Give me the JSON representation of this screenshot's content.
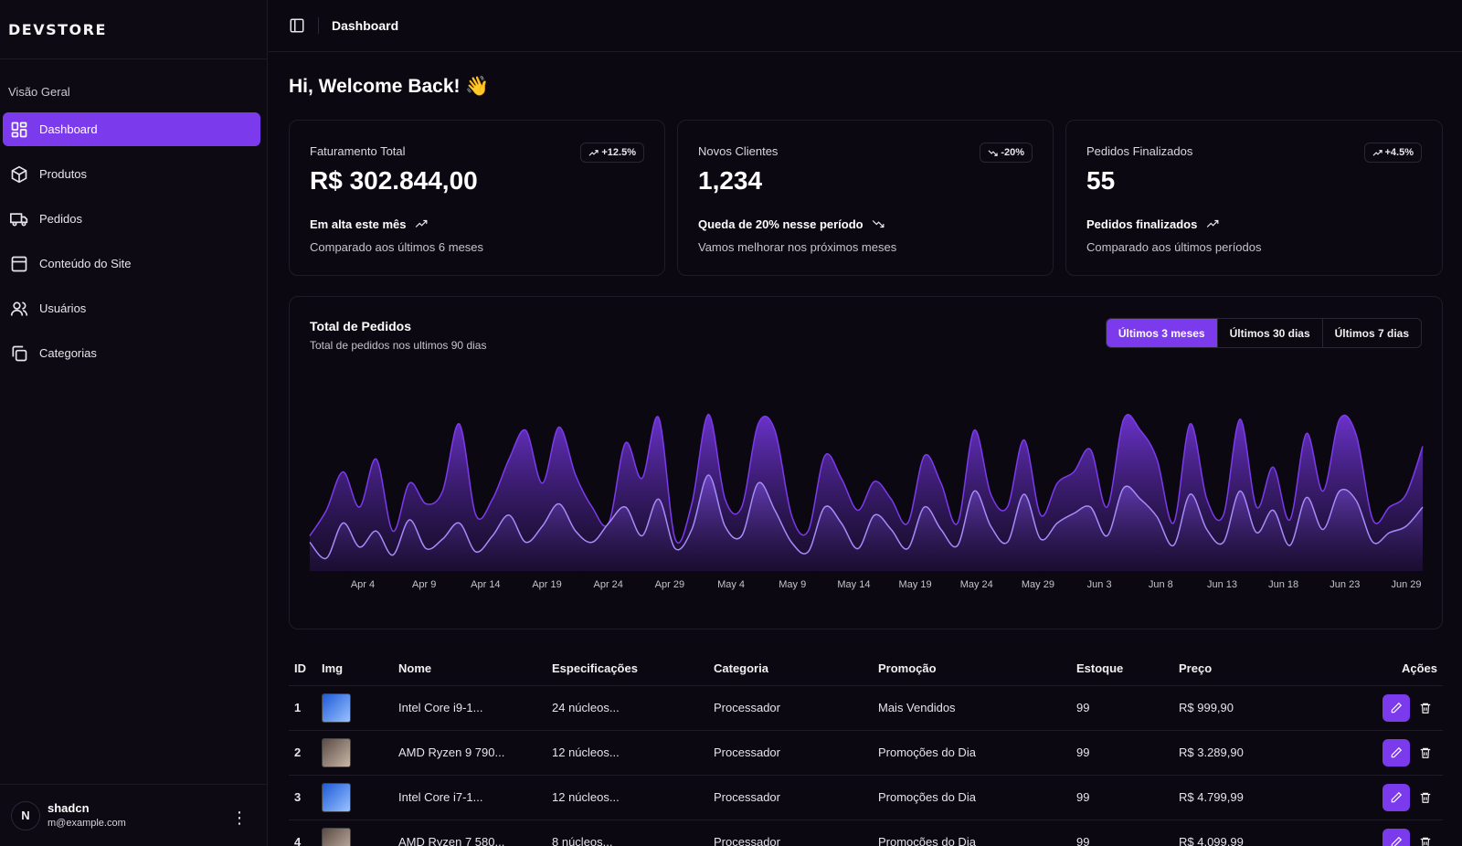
{
  "brand": "DEVSTORE",
  "sidebar": {
    "section": "Visão Geral",
    "items": [
      {
        "label": "Dashboard",
        "icon": "layout-grid-icon",
        "active": true
      },
      {
        "label": "Produtos",
        "icon": "package-icon"
      },
      {
        "label": "Pedidos",
        "icon": "truck-icon"
      },
      {
        "label": "Conteúdo do Site",
        "icon": "browser-window-icon"
      },
      {
        "label": "Usuários",
        "icon": "users-icon"
      },
      {
        "label": "Categorias",
        "icon": "copy-icon"
      }
    ],
    "user": {
      "initial": "N",
      "name": "shadcn",
      "email": "m@example.com"
    }
  },
  "header": {
    "breadcrumb": "Dashboard"
  },
  "welcome": "Hi, Welcome Back! 👋",
  "stats": [
    {
      "label": "Faturamento Total",
      "value": "R$ 302.844,00",
      "badge": "+12.5%",
      "badge_dir": "up",
      "trend": "Em alta este mês",
      "trend_dir": "up",
      "note": "Comparado aos últimos 6 meses"
    },
    {
      "label": "Novos Clientes",
      "value": "1,234",
      "badge": "-20%",
      "badge_dir": "down",
      "trend": "Queda de 20% nesse período",
      "trend_dir": "down",
      "note": "Vamos melhorar nos próximos meses"
    },
    {
      "label": "Pedidos Finalizados",
      "value": "55",
      "badge": "+4.5%",
      "badge_dir": "up",
      "trend": "Pedidos finalizados",
      "trend_dir": "up",
      "note": "Comparado aos últimos períodos"
    }
  ],
  "chart_panel": {
    "title": "Total de Pedidos",
    "subtitle": "Total de pedidos nos ultimos 90 dias",
    "ranges": [
      "Últimos 3 meses",
      "Últimos 30 dias",
      "Últimos 7 dias"
    ],
    "active_range": 0
  },
  "chart_data": {
    "type": "area",
    "x_ticks": [
      "Apr 4",
      "Apr 9",
      "Apr 14",
      "Apr 19",
      "Apr 24",
      "Apr 29",
      "May 4",
      "May 9",
      "May 14",
      "May 19",
      "May 24",
      "May 29",
      "Jun 3",
      "Jun 8",
      "Jun 13",
      "Jun 18",
      "Jun 23",
      "Jun 29"
    ],
    "series": [
      {
        "values": [
          22,
          38,
          62,
          40,
          70,
          25,
          55,
          42,
          50,
          92,
          35,
          45,
          70,
          88,
          55,
          90,
          60,
          40,
          30,
          80,
          58,
          96,
          20,
          42,
          98,
          45,
          40,
          92,
          88,
          35,
          25,
          72,
          58,
          38,
          56,
          45,
          30,
          72,
          55,
          30,
          88,
          48,
          40,
          82,
          35,
          55,
          62,
          76,
          40,
          95,
          88,
          70,
          30,
          92,
          45,
          35,
          95,
          40,
          65,
          32,
          86,
          50,
          95,
          85,
          32,
          40,
          48,
          78
        ],
        "color": "#7c3aed"
      },
      {
        "values": [
          18,
          8,
          30,
          15,
          25,
          10,
          32,
          14,
          20,
          30,
          12,
          22,
          35,
          18,
          28,
          42,
          25,
          18,
          30,
          40,
          22,
          45,
          14,
          26,
          60,
          28,
          22,
          55,
          38,
          18,
          12,
          40,
          30,
          14,
          35,
          26,
          14,
          40,
          26,
          16,
          50,
          28,
          18,
          48,
          20,
          30,
          36,
          40,
          22,
          52,
          45,
          34,
          16,
          48,
          26,
          18,
          50,
          24,
          38,
          16,
          46,
          26,
          50,
          44,
          18,
          24,
          28,
          40
        ],
        "color": "#a78bfa"
      }
    ],
    "grid": false
  },
  "table": {
    "headers": [
      "ID",
      "Img",
      "Nome",
      "Especificações",
      "Categoria",
      "Promoção",
      "Estoque",
      "Preço",
      "Ações"
    ],
    "rows": [
      {
        "id": "1",
        "img": "intel-box",
        "name": "Intel Core i9-1...",
        "specs": "24 núcleos...",
        "category": "Processador",
        "promo": "Mais Vendidos",
        "stock": "99",
        "price": "R$ 999,90"
      },
      {
        "id": "2",
        "img": "amd-box",
        "name": "AMD Ryzen 9 790...",
        "specs": "12 núcleos...",
        "category": "Processador",
        "promo": "Promoções do Dia",
        "stock": "99",
        "price": "R$ 3.289,90"
      },
      {
        "id": "3",
        "img": "intel-box",
        "name": "Intel Core i7-1...",
        "specs": "12 núcleos...",
        "category": "Processador",
        "promo": "Promoções do Dia",
        "stock": "99",
        "price": "R$ 4.799,99"
      },
      {
        "id": "4",
        "img": "amd-box",
        "name": "AMD Ryzen 7 580...",
        "specs": "8 núcleos...",
        "category": "Processador",
        "promo": "Promoções do Dia",
        "stock": "99",
        "price": "R$ 4.099,99"
      }
    ]
  },
  "colors": {
    "accent": "#7c3aed",
    "background": "#0b0811"
  }
}
